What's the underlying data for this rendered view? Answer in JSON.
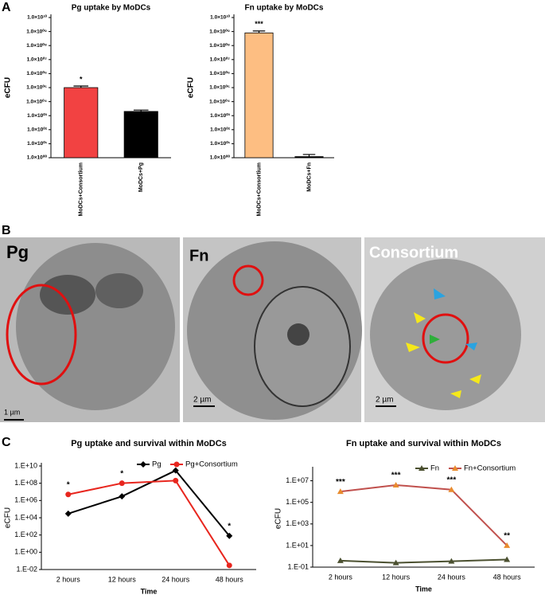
{
  "panel_labels": [
    "A",
    "B",
    "C"
  ],
  "chart_data": [
    {
      "type": "bar",
      "title": "Pg uptake by MoDCs",
      "ylabel": "eCFU",
      "log": true,
      "categories": [
        "MoDCs+Consortium",
        "MoDCs+Pg"
      ],
      "values": [
        100000,
        2000
      ],
      "errors": [
        30000,
        500
      ],
      "colors": [
        "#f24242",
        "#000000"
      ],
      "annotations": [
        "*",
        null
      ],
      "ylim": [
        1,
        10000000000
      ],
      "yticks": [
        {
          "value": 1,
          "label": "1.0×10⁰⁰"
        },
        {
          "value": 10,
          "label": "1.0×10⁰¹"
        },
        {
          "value": 100,
          "label": "1.0×10⁰²"
        },
        {
          "value": 1000,
          "label": "1.0×10⁰³"
        },
        {
          "value": 10000,
          "label": "1.0×10⁰⁴"
        },
        {
          "value": 100000,
          "label": "1.0×10⁰⁵"
        },
        {
          "value": 1000000,
          "label": "1.0×10⁰⁶"
        },
        {
          "value": 10000000,
          "label": "1.0×10⁰⁷"
        },
        {
          "value": 100000000,
          "label": "1.0×10⁰⁸"
        },
        {
          "value": 1000000000,
          "label": "1.0×10⁰⁹"
        },
        {
          "value": 10000000000,
          "label": "1.0×10¹⁰"
        }
      ]
    },
    {
      "type": "bar",
      "title": "Fn uptake by MoDCs",
      "ylabel": "eCFU",
      "log": true,
      "categories": [
        "MoDCs+Consortium",
        "MoDCs+Fn"
      ],
      "values": [
        800000000,
        1.2
      ],
      "errors": [
        300000000,
        0.5
      ],
      "colors": [
        "#fdbe82",
        "#000000"
      ],
      "annotations": [
        "***",
        null
      ],
      "ylim": [
        1,
        10000000000
      ],
      "yticks": [
        {
          "value": 1,
          "label": "1.0×10⁰⁰"
        },
        {
          "value": 10,
          "label": "1.0×10⁰¹"
        },
        {
          "value": 100,
          "label": "1.0×10⁰²"
        },
        {
          "value": 1000,
          "label": "1.0×10⁰³"
        },
        {
          "value": 10000,
          "label": "1.0×10⁰⁴"
        },
        {
          "value": 100000,
          "label": "1.0×10⁰⁵"
        },
        {
          "value": 1000000,
          "label": "1.0×10⁰⁶"
        },
        {
          "value": 10000000,
          "label": "1.0×10⁰⁷"
        },
        {
          "value": 100000000,
          "label": "1.0×10⁰⁸"
        },
        {
          "value": 1000000000,
          "label": "1.0×10⁰⁹"
        },
        {
          "value": 10000000000,
          "label": "1.0×10¹⁰"
        }
      ]
    },
    {
      "type": "line",
      "title": "Pg uptake and survival within MoDCs",
      "xlabel": "Time",
      "ylabel": "eCFU",
      "log": true,
      "categories": [
        "2 hours",
        "12 hours",
        "24 hours",
        "48 hours"
      ],
      "series": [
        {
          "name": "Pg",
          "color": "#000000",
          "marker": "diamond",
          "values": [
            30000,
            3000000,
            3000000000,
            80
          ]
        },
        {
          "name": "Pg+Consortium",
          "color": "#e8261e",
          "marker": "circle",
          "values": [
            5000000,
            100000000,
            200000000,
            0.03
          ]
        }
      ],
      "annotations": [
        "*",
        "*",
        null,
        "*"
      ],
      "ylim": [
        0.01,
        10000000000
      ],
      "yticks": [
        {
          "value": 0.01,
          "label": "1.E-02"
        },
        {
          "value": 1,
          "label": "1.E+00"
        },
        {
          "value": 100,
          "label": "1.E+02"
        },
        {
          "value": 10000,
          "label": "1.E+04"
        },
        {
          "value": 1000000,
          "label": "1.E+06"
        },
        {
          "value": 100000000,
          "label": "1.E+08"
        },
        {
          "value": 10000000000,
          "label": "1.E+10"
        }
      ]
    },
    {
      "type": "line",
      "title": "Fn uptake and survival within MoDCs",
      "xlabel": "Time",
      "ylabel": "eCFU",
      "log": true,
      "categories": [
        "2 hours",
        "12 hours",
        "24 hours",
        "48 hours"
      ],
      "series": [
        {
          "name": "Fn",
          "color": "#4b5030",
          "marker": "triangle",
          "values": [
            0.4,
            0.25,
            0.35,
            0.5
          ]
        },
        {
          "name": "Fn+Consortium",
          "color": "#c0504d",
          "marker": "triangle",
          "values": [
            1000000,
            4000000,
            1500000,
            10
          ]
        }
      ],
      "annotations": [
        "***",
        "***",
        "***",
        "**"
      ],
      "ylim": [
        0.1,
        100000000
      ],
      "yticks": [
        {
          "value": 0.1,
          "label": "1.E-01"
        },
        {
          "value": 10,
          "label": "1.E+01"
        },
        {
          "value": 1000,
          "label": "1.E+03"
        },
        {
          "value": 100000,
          "label": "1.E+05"
        },
        {
          "value": 10000000,
          "label": "1.E+07"
        }
      ]
    }
  ],
  "micrographs": [
    {
      "label": "Pg",
      "scale": "1 µm"
    },
    {
      "label": "Fn",
      "scale": "2 µm"
    },
    {
      "label": "Consortium",
      "scale": "2 µm"
    }
  ]
}
